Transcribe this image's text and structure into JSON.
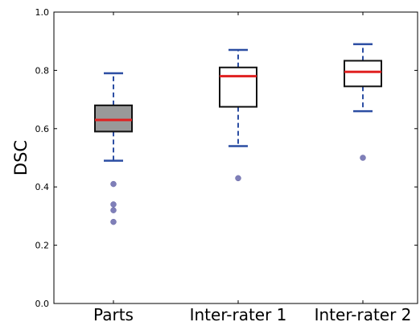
{
  "chart_data": {
    "type": "box",
    "title": "",
    "xlabel": "",
    "ylabel": "DSC",
    "ylim": [
      0.0,
      1.0
    ],
    "yticks": [
      "0.0",
      "0.2",
      "0.4",
      "0.6",
      "0.8",
      "1.0"
    ],
    "grid": false,
    "categories": [
      "Parts",
      "Inter-rater 1",
      "Inter-rater 2"
    ],
    "boxes": [
      {
        "label": "Parts",
        "whisker_low": 0.49,
        "q1": 0.59,
        "median": 0.63,
        "q3": 0.68,
        "whisker_high": 0.79,
        "outliers": [
          0.41,
          0.34,
          0.32,
          0.28
        ],
        "fill": "#999999"
      },
      {
        "label": "Inter-rater 1",
        "whisker_low": 0.54,
        "q1": 0.675,
        "median": 0.78,
        "q3": 0.81,
        "whisker_high": 0.87,
        "outliers": [
          0.43
        ],
        "fill": "#ffffff"
      },
      {
        "label": "Inter-rater 2",
        "whisker_low": 0.66,
        "q1": 0.745,
        "median": 0.795,
        "q3": 0.833,
        "whisker_high": 0.89,
        "outliers": [
          0.5
        ],
        "fill": "#ffffff"
      }
    ],
    "colors": {
      "whisker": "#2c4ea3",
      "median": "#e02020",
      "box_edge": "#111111",
      "outlier": "#7f7fb8"
    }
  }
}
